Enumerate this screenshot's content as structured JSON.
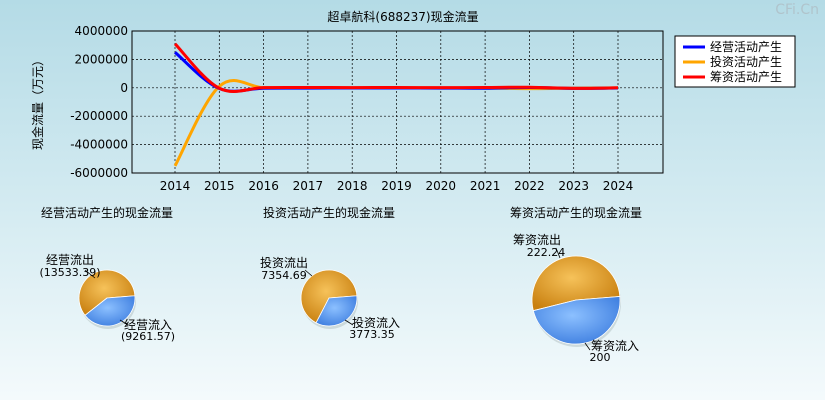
{
  "watermark": "CFi.Cn",
  "chart_data": [
    {
      "type": "line",
      "title": "超卓航科(688237)现金流量",
      "ylabel": "现金流量（万元）",
      "ylim": [
        -6000000,
        4000000
      ],
      "yticks": [
        "4000000",
        "2000000",
        "0",
        "-2000000",
        "-4000000",
        "-6000000"
      ],
      "ytick_values": [
        4000000,
        2000000,
        0,
        -2000000,
        -4000000,
        -6000000
      ],
      "x": [
        "2014",
        "2015",
        "2016",
        "2017",
        "2018",
        "2019",
        "2020",
        "2021",
        "2022",
        "2023",
        "2024"
      ],
      "xlim": [
        2014,
        2024
      ],
      "grid": true,
      "legend_position": "top-right",
      "series": [
        {
          "name": "经营活动产生",
          "color": "#0000ff",
          "points": [
            [
              2014,
              2500000
            ],
            [
              2015,
              -50000
            ],
            [
              2016,
              -30000
            ],
            [
              2017,
              -20000
            ],
            [
              2018,
              -15000
            ],
            [
              2019,
              -15000
            ],
            [
              2020,
              -20000
            ],
            [
              2021,
              -30000
            ],
            [
              2022,
              20000
            ],
            [
              2023,
              -40000
            ],
            [
              2024,
              -13533
            ]
          ]
        },
        {
          "name": "投资活动产生",
          "color": "#ffa500",
          "points": [
            [
              2014,
              -5500000
            ],
            [
              2015,
              100000
            ],
            [
              2016,
              10000
            ],
            [
              2017,
              -10000
            ],
            [
              2018,
              -5000
            ],
            [
              2019,
              -8000
            ],
            [
              2020,
              -10000
            ],
            [
              2021,
              -20000
            ],
            [
              2022,
              -60000
            ],
            [
              2023,
              -20000
            ],
            [
              2024,
              -3581
            ]
          ]
        },
        {
          "name": "筹资活动产生",
          "color": "#ff0000",
          "points": [
            [
              2014,
              3100000
            ],
            [
              2015,
              -30000
            ],
            [
              2016,
              10000
            ],
            [
              2017,
              20000
            ],
            [
              2018,
              15000
            ],
            [
              2019,
              20000
            ],
            [
              2020,
              10000
            ],
            [
              2021,
              25000
            ],
            [
              2022,
              40000
            ],
            [
              2023,
              -40000
            ],
            [
              2024,
              -22
            ]
          ]
        }
      ]
    },
    {
      "type": "pie",
      "title": "经营活动产生的现金流量",
      "slices": [
        {
          "label": "经营流出",
          "value": 13533.39,
          "value_text": "(13533.39)",
          "color": "#f0a030"
        },
        {
          "label": "经营流入",
          "value": 9261.57,
          "value_text": "(9261.57)",
          "color": "#4a90e8"
        }
      ]
    },
    {
      "type": "pie",
      "title": "投资活动产生的现金流量",
      "slices": [
        {
          "label": "投资流出",
          "value": 7354.69,
          "value_text": "7354.69",
          "color": "#f0a030"
        },
        {
          "label": "投资流入",
          "value": 3773.35,
          "value_text": "3773.35",
          "color": "#4a90e8"
        }
      ]
    },
    {
      "type": "pie",
      "title": "筹资活动产生的现金流量",
      "slices": [
        {
          "label": "筹资流出",
          "value": 222.24,
          "value_text": "222.24",
          "color": "#f0a030"
        },
        {
          "label": "筹资流入",
          "value": 200,
          "value_text": "200",
          "color": "#4a90e8"
        }
      ]
    }
  ]
}
